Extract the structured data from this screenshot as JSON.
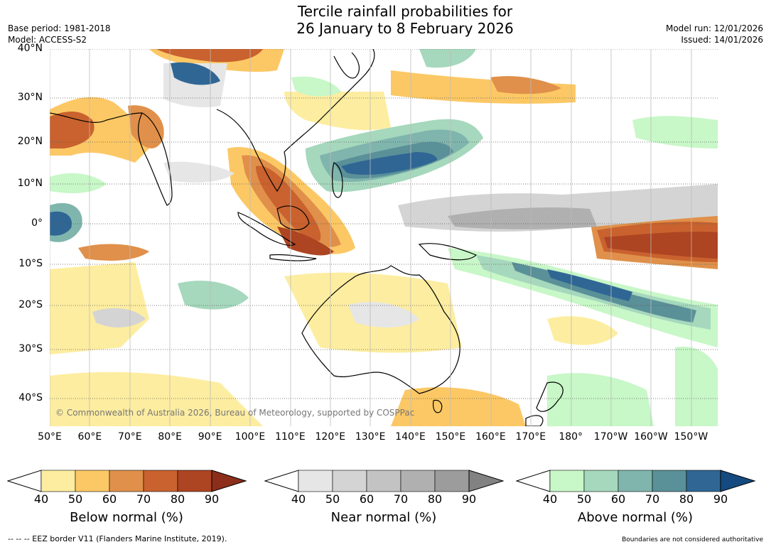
{
  "title_line1": "Tercile rainfall probabilities for",
  "title_line2": "26 January to 8 February 2026",
  "base_period": "Base period: 1981-2018",
  "model": "Model: ACCESS-S2",
  "model_run": "Model run: 12/01/2026",
  "issued": "Issued: 14/01/2026",
  "copyright": "© Commonwealth of Australia 2026, Bureau of Meteorology, supported by COSPPac",
  "lat_labels": [
    "40°N",
    "30°N",
    "20°N",
    "10°N",
    "0°",
    "10°S",
    "20°S",
    "30°S",
    "40°S"
  ],
  "lon_labels": [
    "50°E",
    "60°E",
    "70°E",
    "80°E",
    "90°E",
    "100°E",
    "110°E",
    "120°E",
    "130°E",
    "140°E",
    "150°E",
    "160°E",
    "170°E",
    "180°",
    "170°W",
    "160°W",
    "150°W"
  ],
  "colorbars": [
    {
      "label": "Below normal (%)",
      "ticks": [
        "40",
        "50",
        "60",
        "70",
        "80",
        "90"
      ],
      "colors": [
        "#fdeda0",
        "#fcc865",
        "#e0904a",
        "#c9622e",
        "#ad4422",
        "#8c2e1a"
      ]
    },
    {
      "label": "Near normal (%)",
      "ticks": [
        "40",
        "50",
        "60",
        "70",
        "80",
        "90"
      ],
      "colors": [
        "#e6e6e6",
        "#d4d4d4",
        "#c3c3c3",
        "#b0b0b0",
        "#9c9c9c",
        "#828282"
      ]
    },
    {
      "label": "Above normal (%)",
      "ticks": [
        "40",
        "50",
        "60",
        "70",
        "80",
        "90"
      ],
      "colors": [
        "#c8f7c8",
        "#a5d8bc",
        "#7fb5ad",
        "#5a9098",
        "#306694",
        "#144a80"
      ]
    }
  ],
  "footer_left": "--  --  -- EEZ border V11 (Flanders Marine Institute, 2019).",
  "footer_right": "Boundaries are not considered authoritative"
}
